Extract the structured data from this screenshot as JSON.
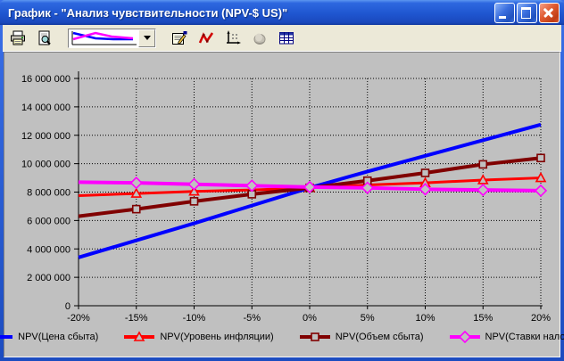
{
  "window": {
    "title": "График - \"Анализ чувствительности (NPV-$ US)\"",
    "controls": [
      "minimize",
      "maximize",
      "close"
    ]
  },
  "toolbar": {
    "buttons": [
      {
        "name": "print",
        "icon": "printer-icon",
        "disabled": false
      },
      {
        "name": "print-preview",
        "icon": "preview-icon",
        "disabled": false
      },
      {
        "name": "chart-type-select",
        "icon": "chart-thumbnail",
        "disabled": false
      },
      {
        "name": "properties",
        "icon": "properties-icon",
        "disabled": false
      },
      {
        "name": "line-chart",
        "icon": "line-chart-icon",
        "disabled": false
      },
      {
        "name": "axes",
        "icon": "axes-icon",
        "disabled": false
      },
      {
        "name": "chart-3d",
        "icon": "pie-3d-icon",
        "disabled": true
      },
      {
        "name": "data-table",
        "icon": "table-icon",
        "disabled": false
      }
    ]
  },
  "chart_data": {
    "type": "line",
    "x_labels": [
      "-20%",
      "-15%",
      "-10%",
      "-5%",
      "0%",
      "5%",
      "10%",
      "15%",
      "20%"
    ],
    "x_values": [
      -20,
      -15,
      -10,
      -5,
      0,
      5,
      10,
      15,
      20
    ],
    "y_ticks": [
      "0",
      "2 000 000",
      "4 000 000",
      "6 000 000",
      "8 000 000",
      "10 000 000",
      "12 000 000",
      "14 000 000",
      "16 000 000"
    ],
    "ylim": [
      0,
      16000000
    ],
    "grid": true,
    "legend_position": "bottom",
    "plot_bg": "#C0C0C0",
    "series": [
      {
        "name": "NPV(Цена сбыта)",
        "color": "#0000FF",
        "marker": "none",
        "values": [
          3400000,
          4600000,
          5800000,
          7050000,
          8300000,
          9450000,
          10550000,
          11650000,
          12750000
        ]
      },
      {
        "name": "NPV(Уровень инфляции)",
        "color": "#FF0000",
        "marker": "triangle",
        "values": [
          7750000,
          7900000,
          8050000,
          8150000,
          8300000,
          8500000,
          8650000,
          8850000,
          9000000
        ]
      },
      {
        "name": "NPV(Объем сбыта)",
        "color": "#800000",
        "marker": "square",
        "values": [
          6300000,
          6800000,
          7350000,
          7850000,
          8300000,
          8800000,
          9350000,
          9950000,
          10400000
        ]
      },
      {
        "name": "NPV(Ставки налогов)",
        "color": "#FF00FF",
        "marker": "diamond",
        "values": [
          8700000,
          8650000,
          8550000,
          8450000,
          8350000,
          8300000,
          8200000,
          8150000,
          8100000
        ]
      }
    ]
  }
}
